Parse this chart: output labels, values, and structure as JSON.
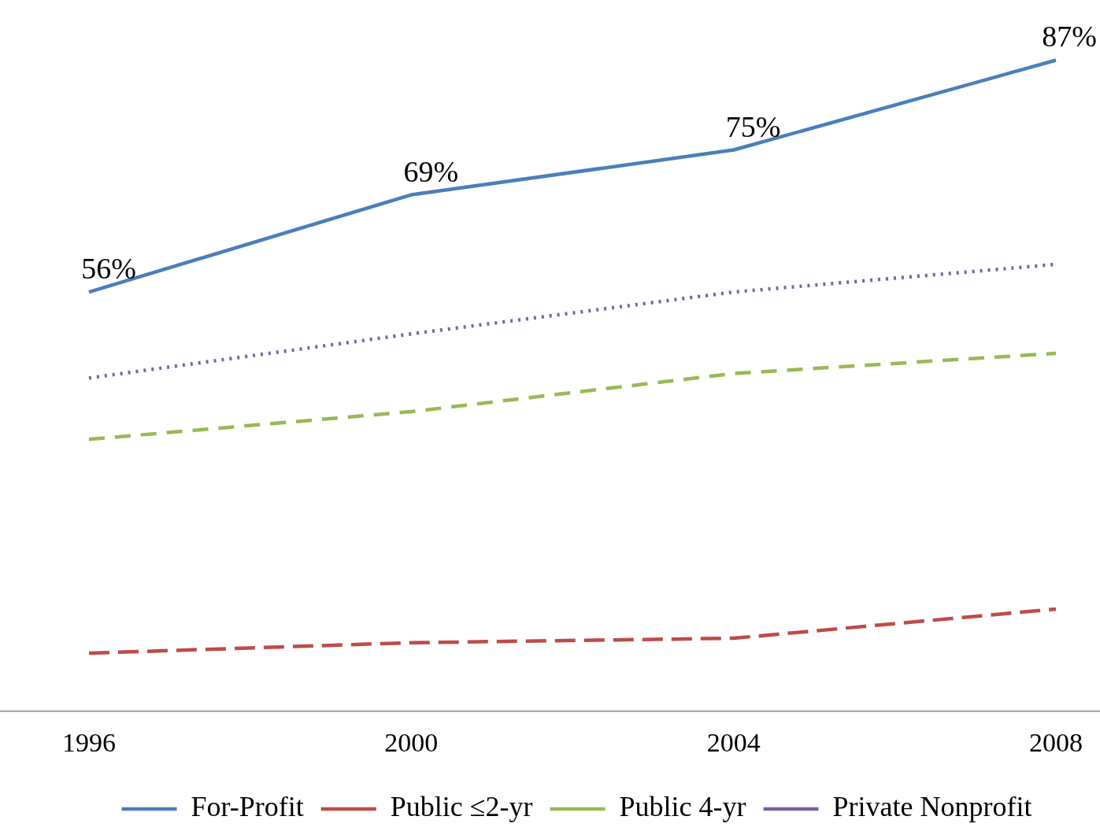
{
  "chart_data": {
    "type": "line",
    "categories": [
      "1996",
      "2000",
      "2004",
      "2008"
    ],
    "series": [
      {
        "name": "For-Profit",
        "color": "#4a7ebb",
        "line_style": "solid",
        "values": [
          56,
          69,
          75,
          87
        ],
        "value_labels": [
          "56%",
          "69%",
          "75%",
          "87%"
        ]
      },
      {
        "name": "Public ≤2-yr",
        "color": "#be4b48",
        "line_style": "dashed",
        "values": [
          7.7,
          9.1,
          9.7,
          13.6
        ]
      },
      {
        "name": "Public 4-yr",
        "color": "#98b954",
        "line_style": "dashed",
        "values": [
          36.3,
          40,
          45.1,
          47.8
        ]
      },
      {
        "name": "Private Nonprofit",
        "color": "#7d60a0",
        "line_style": "dotted",
        "values": [
          44.5,
          50.4,
          56,
          59.7
        ]
      }
    ],
    "grid": false,
    "tick_labels": "x",
    "marker": "none",
    "legend": "bottom"
  }
}
